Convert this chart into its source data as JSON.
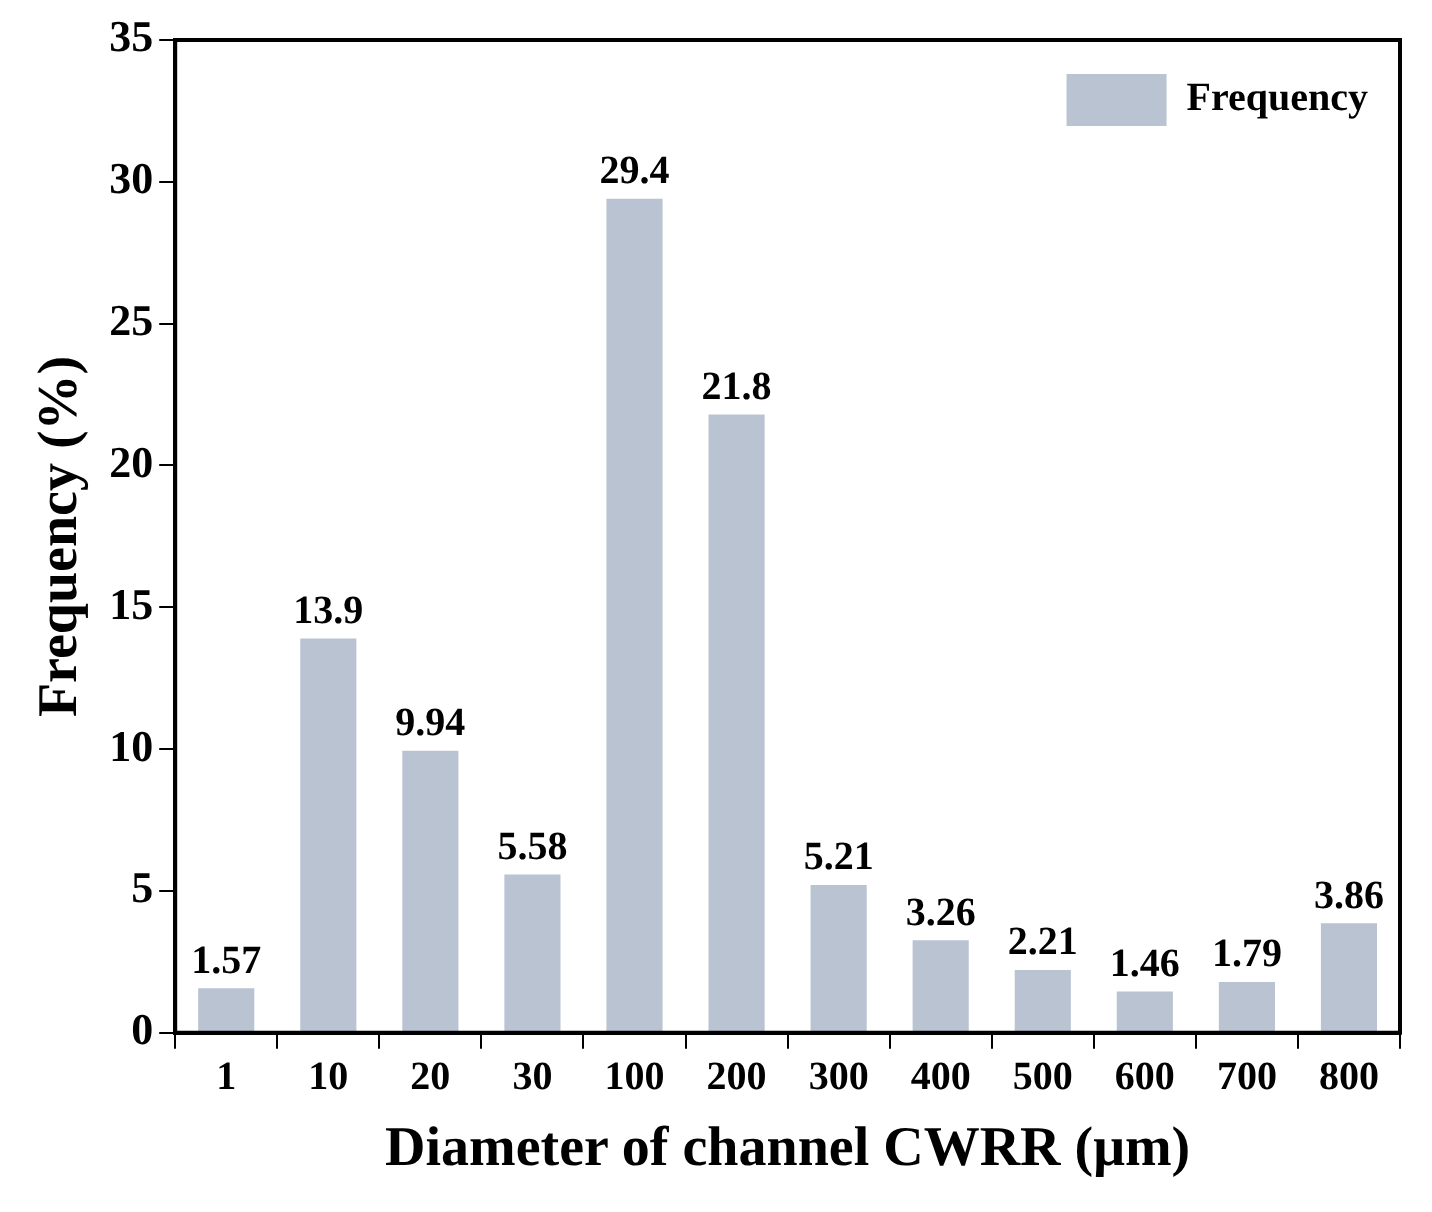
{
  "chart_data": {
    "type": "bar",
    "xlabel": "Diameter of channel CWRR (μm)",
    "ylabel": "Frequency (%)",
    "categories": [
      "1",
      "10",
      "20",
      "30",
      "100",
      "200",
      "300",
      "400",
      "500",
      "600",
      "700",
      "800"
    ],
    "series": [
      {
        "name": "Frequency",
        "color": "#b9c3d1",
        "values": [
          1.57,
          13.9,
          9.94,
          5.58,
          29.4,
          21.8,
          5.21,
          3.26,
          2.21,
          1.46,
          1.79,
          3.86
        ]
      }
    ],
    "ylim": [
      0,
      35
    ],
    "yticks": [
      0,
      5,
      10,
      15,
      20,
      25,
      30,
      35
    ],
    "grid": false,
    "legend": "top right",
    "data_labels": true
  }
}
